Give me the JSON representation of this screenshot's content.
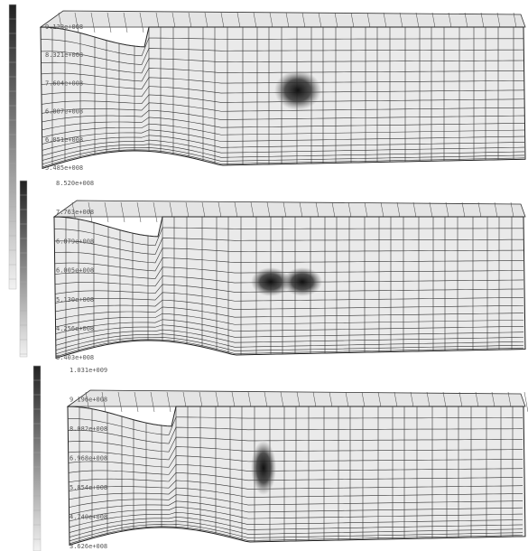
{
  "panels": [
    {
      "colorbar_labels": [
        "9.123e+008",
        "8.321e+008",
        "7.604e+008",
        "6.887e+008",
        "6.051e+008",
        "5.485e+008"
      ]
    },
    {
      "colorbar_labels": [
        "8.520e+008",
        "7.763e+008",
        "6.879e+008",
        "6.005e+008",
        "5.130e+008",
        "4.256e+008",
        "3.403e+008"
      ]
    },
    {
      "colorbar_labels": [
        "1.031e+009",
        "9.196e+008",
        "8.082e+008",
        "6.968e+008",
        "5.854e+008",
        "4.740e+008",
        "3.626e+008"
      ]
    }
  ]
}
